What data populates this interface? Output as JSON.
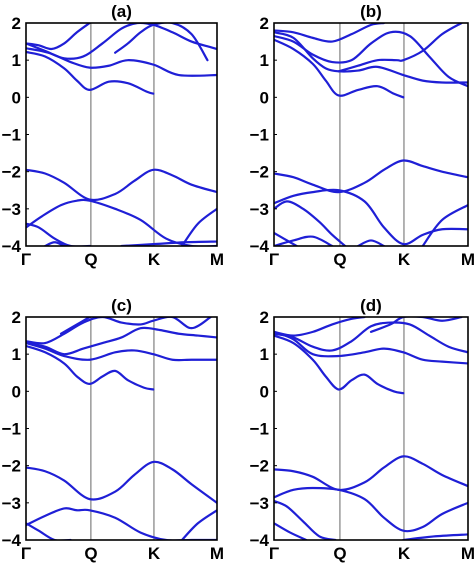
{
  "line_color": "#1f1fd6",
  "chart_data": [
    {
      "type": "line",
      "title": "(a)",
      "x_ticks": [
        "Γ",
        "Q",
        "K",
        "M"
      ],
      "y_ticks": [
        "2",
        "1",
        "0",
        "-1",
        "-2",
        "-3",
        "-4"
      ],
      "ylim": [
        -4,
        2
      ],
      "x_domain": [
        0,
        3
      ],
      "series": [
        {
          "x": [
            0,
            0.3,
            0.6,
            0.8,
            1.0,
            1.3,
            1.6,
            1.9,
            2.0
          ],
          "y": [
            1.22,
            1.1,
            0.78,
            0.45,
            0.2,
            0.42,
            0.38,
            0.15,
            0.1
          ]
        },
        {
          "x": [
            0,
            0.35,
            0.7,
            1.0,
            1.3,
            1.6,
            2.0,
            2.4,
            3.0
          ],
          "y": [
            1.32,
            1.2,
            0.95,
            0.8,
            0.85,
            1.0,
            0.88,
            0.6,
            0.6
          ]
        },
        {
          "x": [
            0,
            0.3,
            0.6,
            0.9,
            1.2,
            1.5,
            1.75,
            2.0,
            2.3,
            2.6,
            2.9,
            3.0
          ],
          "y": [
            1.45,
            1.25,
            1.05,
            1.1,
            1.45,
            1.85,
            2.0,
            1.95,
            1.75,
            1.5,
            1.35,
            1.3
          ]
        },
        {
          "x": [
            1.4,
            1.6,
            1.8,
            2.0,
            2.3,
            2.6,
            2.85
          ],
          "y": [
            1.2,
            1.45,
            1.75,
            1.95,
            2.0,
            1.7,
            1.0
          ]
        },
        {
          "x": [
            0,
            0.2,
            0.4,
            0.6,
            0.8,
            1.0
          ],
          "y": [
            1.45,
            1.4,
            1.3,
            1.45,
            1.75,
            2.0
          ]
        },
        {
          "x": [
            0,
            0.3,
            0.6,
            1.0,
            1.4,
            1.7,
            2.0,
            2.3,
            2.6,
            3.0
          ],
          "y": [
            -1.95,
            -2.05,
            -2.3,
            -2.75,
            -2.6,
            -2.25,
            -1.95,
            -2.1,
            -2.35,
            -2.55
          ]
        },
        {
          "x": [
            0,
            0.25,
            0.55,
            0.8,
            1.0,
            1.4,
            1.8,
            2.2,
            2.6,
            3.0
          ],
          "y": [
            -3.5,
            -3.2,
            -2.9,
            -2.78,
            -2.78,
            -3.0,
            -3.3,
            -3.8,
            -4.0,
            -4.0
          ]
        },
        {
          "x": [
            0,
            0.2,
            0.45,
            0.7,
            1.0
          ],
          "y": [
            -3.4,
            -3.5,
            -3.8,
            -4.0,
            -4.0
          ]
        },
        {
          "x": [
            0.3,
            0.45,
            0.6
          ],
          "y": [
            -4.0,
            -3.9,
            -4.0
          ]
        },
        {
          "x": [
            1.5,
            2.0,
            2.5,
            3.0
          ],
          "y": [
            -4.0,
            -3.95,
            -3.9,
            -3.88
          ]
        },
        {
          "x": [
            2.45,
            2.7,
            3.0
          ],
          "y": [
            -4.0,
            -3.4,
            -3.0
          ]
        }
      ]
    },
    {
      "type": "line",
      "title": "(b)",
      "x_ticks": [
        "Γ",
        "Q",
        "K",
        "M"
      ],
      "y_ticks": [
        "2",
        "1",
        "0",
        "-1",
        "-2",
        "-3",
        "-4"
      ],
      "ylim": [
        -4,
        2
      ],
      "x_domain": [
        0,
        3
      ],
      "series": [
        {
          "x": [
            0,
            0.3,
            0.6,
            0.8,
            1.0,
            1.3,
            1.6,
            1.85,
            2.0
          ],
          "y": [
            1.55,
            1.3,
            0.9,
            0.45,
            0.05,
            0.2,
            0.3,
            0.1,
            0.0
          ]
        },
        {
          "x": [
            0,
            0.3,
            0.6,
            0.8,
            1.0,
            1.3,
            1.6,
            2.0,
            2.3,
            2.6,
            3.0
          ],
          "y": [
            1.75,
            1.6,
            1.05,
            0.78,
            0.7,
            0.72,
            0.82,
            0.6,
            0.45,
            0.4,
            0.4
          ]
        },
        {
          "x": [
            0,
            0.3,
            0.6,
            0.9,
            1.2,
            1.5,
            1.8,
            2.1,
            2.4,
            2.7,
            3.0
          ],
          "y": [
            1.65,
            1.5,
            1.15,
            0.95,
            1.0,
            1.45,
            1.75,
            1.65,
            1.1,
            0.55,
            0.3
          ]
        },
        {
          "x": [
            1.0,
            1.3,
            1.6,
            1.9,
            2.0,
            2.3,
            2.6,
            2.9
          ],
          "y": [
            0.7,
            0.85,
            1.0,
            1.0,
            1.0,
            1.25,
            1.7,
            2.0
          ]
        },
        {
          "x": [
            0,
            0.3,
            0.6,
            0.9,
            1.2,
            1.5,
            1.7
          ],
          "y": [
            1.8,
            1.75,
            1.6,
            1.5,
            1.7,
            1.95,
            2.0
          ]
        },
        {
          "x": [
            0,
            0.3,
            0.6,
            1.0,
            1.4,
            1.7,
            2.0,
            2.3,
            2.6,
            3.0
          ],
          "y": [
            -2.05,
            -2.15,
            -2.35,
            -2.55,
            -2.3,
            -1.95,
            -1.7,
            -1.85,
            -2.0,
            -2.15
          ]
        },
        {
          "x": [
            0,
            0.3,
            0.6,
            1.0,
            1.4,
            1.7,
            2.0,
            2.3,
            2.6,
            3.0
          ],
          "y": [
            -2.85,
            -2.65,
            -2.55,
            -2.5,
            -2.8,
            -3.5,
            -3.95,
            -3.7,
            -3.55,
            -3.55
          ]
        },
        {
          "x": [
            0,
            0.2,
            0.45,
            0.7,
            0.9,
            1.1
          ],
          "y": [
            -3.0,
            -2.8,
            -3.0,
            -3.35,
            -3.7,
            -4.0
          ]
        },
        {
          "x": [
            0,
            0.3,
            0.6,
            0.9
          ],
          "y": [
            -4.0,
            -3.85,
            -3.75,
            -4.0
          ]
        },
        {
          "x": [
            0,
            0.15,
            0.35
          ],
          "y": [
            -3.65,
            -3.8,
            -4.0
          ]
        },
        {
          "x": [
            2.3,
            2.6,
            3.0
          ],
          "y": [
            -4.0,
            -3.3,
            -2.9
          ]
        },
        {
          "x": [
            1.3,
            1.5,
            1.7
          ],
          "y": [
            -4.0,
            -3.85,
            -4.0
          ]
        }
      ]
    },
    {
      "type": "line",
      "title": "(c)",
      "x_ticks": [
        "Γ",
        "Q",
        "K",
        "M"
      ],
      "y_ticks": [
        "2",
        "1",
        "0",
        "-1",
        "-2",
        "-3",
        "-4"
      ],
      "ylim": [
        -4,
        2
      ],
      "x_domain": [
        0,
        3
      ],
      "series": [
        {
          "x": [
            0,
            0.3,
            0.6,
            0.8,
            1.0,
            1.2,
            1.4,
            1.6,
            1.85,
            2.0
          ],
          "y": [
            1.22,
            1.05,
            0.75,
            0.4,
            0.2,
            0.4,
            0.55,
            0.3,
            0.1,
            0.05
          ]
        },
        {
          "x": [
            0,
            0.3,
            0.6,
            1.0,
            1.4,
            1.7,
            2.0,
            2.3,
            2.6,
            3.0
          ],
          "y": [
            1.3,
            1.15,
            0.95,
            0.85,
            1.05,
            1.1,
            1.0,
            0.85,
            0.85,
            0.85
          ]
        },
        {
          "x": [
            0,
            0.3,
            0.6,
            0.9,
            1.2,
            1.5,
            1.8,
            2.1,
            2.4,
            2.7,
            3.0
          ],
          "y": [
            1.3,
            1.2,
            1.0,
            1.15,
            1.3,
            1.45,
            1.7,
            1.65,
            1.55,
            1.5,
            1.45
          ]
        },
        {
          "x": [
            0,
            0.3,
            0.6,
            0.9,
            1.2,
            1.5,
            1.8,
            2.0,
            2.3,
            2.6,
            2.9
          ],
          "y": [
            1.35,
            1.3,
            1.55,
            1.85,
            2.0,
            1.85,
            1.8,
            1.9,
            2.0,
            1.7,
            2.0
          ]
        },
        {
          "x": [
            0.55,
            0.8,
            1.0
          ],
          "y": [
            1.55,
            1.8,
            2.0
          ]
        },
        {
          "x": [
            0,
            0.3,
            0.6,
            1.0,
            1.4,
            1.7,
            2.0,
            2.3,
            2.6,
            3.0
          ],
          "y": [
            -2.05,
            -2.15,
            -2.4,
            -2.9,
            -2.7,
            -2.25,
            -1.9,
            -2.1,
            -2.5,
            -3.0
          ]
        },
        {
          "x": [
            0,
            0.3,
            0.6,
            0.8,
            1.0,
            1.4,
            1.8,
            2.2,
            2.6,
            3.0
          ],
          "y": [
            -3.6,
            -3.35,
            -3.15,
            -3.2,
            -3.2,
            -3.4,
            -3.8,
            -4.0,
            -4.0,
            -4.0
          ]
        },
        {
          "x": [
            0,
            0.2,
            0.45,
            0.7
          ],
          "y": [
            -3.55,
            -3.75,
            -4.0,
            -4.0
          ]
        },
        {
          "x": [
            2.45,
            2.7,
            3.0
          ],
          "y": [
            -4.0,
            -3.55,
            -3.2
          ]
        }
      ]
    },
    {
      "type": "line",
      "title": "(d)",
      "x_ticks": [
        "Γ",
        "Q",
        "K",
        "M"
      ],
      "y_ticks": [
        "2",
        "1",
        "0",
        "-1",
        "-2",
        "-3",
        "-4"
      ],
      "ylim": [
        -4,
        2
      ],
      "x_domain": [
        0,
        3
      ],
      "series": [
        {
          "x": [
            0,
            0.3,
            0.6,
            0.8,
            1.0,
            1.2,
            1.4,
            1.6,
            1.85,
            2.0
          ],
          "y": [
            1.5,
            1.3,
            0.85,
            0.4,
            0.05,
            0.3,
            0.45,
            0.2,
            0.0,
            -0.05
          ]
        },
        {
          "x": [
            0,
            0.3,
            0.6,
            1.0,
            1.4,
            1.7,
            2.0,
            2.3,
            2.6,
            3.0
          ],
          "y": [
            1.6,
            1.4,
            1.0,
            0.95,
            1.05,
            1.15,
            1.05,
            0.85,
            0.8,
            0.75
          ]
        },
        {
          "x": [
            0,
            0.3,
            0.6,
            0.9,
            1.2,
            1.5,
            1.8,
            2.1,
            2.4,
            2.7,
            3.0
          ],
          "y": [
            1.55,
            1.45,
            1.2,
            1.1,
            1.35,
            1.75,
            1.85,
            1.8,
            1.5,
            1.2,
            1.05
          ]
        },
        {
          "x": [
            0,
            0.3,
            0.6,
            0.9,
            1.2,
            1.4
          ],
          "y": [
            1.6,
            1.5,
            1.6,
            1.8,
            1.95,
            2.0
          ]
        },
        {
          "x": [
            1.5,
            1.8,
            2.0,
            2.3,
            2.6,
            2.9
          ],
          "y": [
            1.6,
            1.8,
            2.0,
            2.0,
            1.9,
            2.0
          ]
        },
        {
          "x": [
            0,
            0.3,
            0.6,
            1.0,
            1.4,
            1.7,
            2.0,
            2.3,
            2.6,
            3.0
          ],
          "y": [
            -2.1,
            -2.15,
            -2.3,
            -2.65,
            -2.45,
            -2.05,
            -1.75,
            -1.95,
            -2.25,
            -2.55
          ]
        },
        {
          "x": [
            0,
            0.3,
            0.6,
            1.0,
            1.4,
            1.7,
            2.0,
            2.3,
            2.6,
            3.0
          ],
          "y": [
            -2.85,
            -2.65,
            -2.6,
            -2.65,
            -2.9,
            -3.4,
            -3.75,
            -3.65,
            -3.3,
            -3.0
          ]
        },
        {
          "x": [
            0,
            0.2,
            0.45,
            0.7,
            0.95
          ],
          "y": [
            -2.95,
            -3.1,
            -3.5,
            -3.9,
            -4.0
          ]
        },
        {
          "x": [
            0,
            0.25,
            0.5
          ],
          "y": [
            -3.55,
            -3.8,
            -4.0
          ]
        },
        {
          "x": [
            2.0,
            2.5,
            3.0
          ],
          "y": [
            -4.0,
            -3.9,
            -3.85
          ]
        }
      ]
    }
  ]
}
